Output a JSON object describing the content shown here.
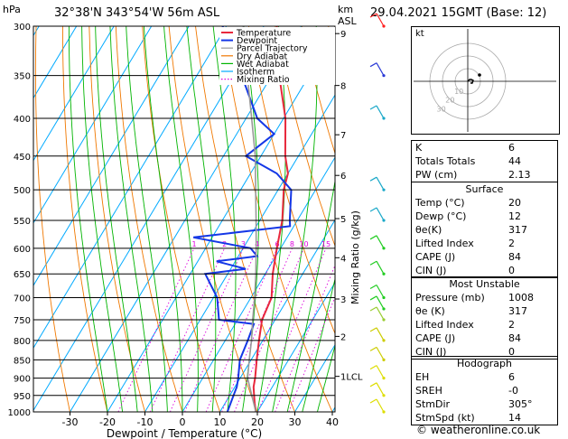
{
  "header": {
    "location": "32°38'N  343°54'W  56m  ASL",
    "datetime": "29.04.2021  15GMT  (Base: 12)",
    "pressure_unit": "hPa",
    "height_unit": "km",
    "height_ref": "ASL"
  },
  "footer": "© weatheronline.co.uk",
  "chart_data": {
    "type": "line",
    "xlabel": "Dewpoint / Temperature (°C)",
    "ylabel_right": "Mixing Ratio (g/kg)",
    "xlim": [
      -35,
      40
    ],
    "pressure_levels": [
      300,
      350,
      400,
      450,
      500,
      550,
      600,
      650,
      700,
      750,
      800,
      850,
      900,
      950,
      1000
    ],
    "x_ticks": [
      -30,
      -20,
      -10,
      0,
      10,
      20,
      30,
      40
    ],
    "km_ticks": [
      {
        "km": "1LCL",
        "p": 895
      },
      {
        "km": "2",
        "p": 790
      },
      {
        "km": "3",
        "p": 703
      },
      {
        "km": "4",
        "p": 618
      },
      {
        "km": "5",
        "p": 547
      },
      {
        "km": "6",
        "p": 478
      },
      {
        "km": "7",
        "p": 421
      },
      {
        "km": "8",
        "p": 361
      },
      {
        "km": "9",
        "p": 307
      }
    ],
    "mixing_ratio_labels": [
      "1",
      "2",
      "3",
      "4",
      "6",
      "8",
      "10",
      "15",
      "20",
      "25"
    ],
    "legend": [
      "Temperature",
      "Dewpoint",
      "Parcel Trajectory",
      "Dry Adiabat",
      "Wet Adiabat",
      "Isotherm",
      "Mixing Ratio"
    ],
    "colors": {
      "temperature": "#e8283c",
      "dewpoint": "#1437e6",
      "parcel": "#999999",
      "dry_adiabat": "#f07800",
      "wet_adiabat": "#00b400",
      "isotherm": "#00aaff",
      "mixing_ratio": "#dd00dd"
    },
    "series": [
      {
        "name": "Temperature",
        "points": [
          [
            1000,
            19.6
          ],
          [
            975,
            18.0
          ],
          [
            950,
            16.5
          ],
          [
            925,
            15.0
          ],
          [
            900,
            14.0
          ],
          [
            850,
            11.5
          ],
          [
            800,
            9.0
          ],
          [
            750,
            6.5
          ],
          [
            700,
            5.5
          ],
          [
            650,
            2.0
          ],
          [
            600,
            -1.0
          ],
          [
            550,
            -4.0
          ],
          [
            500,
            -8.5
          ],
          [
            475,
            -10.0
          ],
          [
            450,
            -13.5
          ],
          [
            400,
            -19.5
          ],
          [
            350,
            -28.0
          ],
          [
            300,
            -36.5
          ]
        ]
      },
      {
        "name": "Dewpoint",
        "points": [
          [
            1000,
            12.0
          ],
          [
            950,
            11.0
          ],
          [
            925,
            10.5
          ],
          [
            900,
            9.5
          ],
          [
            850,
            7.0
          ],
          [
            800,
            6.0
          ],
          [
            760,
            5.0
          ],
          [
            750,
            -5.0
          ],
          [
            700,
            -9.0
          ],
          [
            650,
            -16.0
          ],
          [
            640,
            -6.0
          ],
          [
            625,
            -15.0
          ],
          [
            615,
            -5.0
          ],
          [
            600,
            -8.0
          ],
          [
            580,
            -25.0
          ],
          [
            560,
            -1.0
          ],
          [
            550,
            -2.0
          ],
          [
            500,
            -6.5
          ],
          [
            475,
            -13.0
          ],
          [
            450,
            -24.0
          ],
          [
            420,
            -20.0
          ],
          [
            400,
            -27.0
          ],
          [
            350,
            -38.0
          ],
          [
            300,
            -51.0
          ]
        ]
      },
      {
        "name": "Parcel Trajectory",
        "points": [
          [
            1000,
            19.6
          ],
          [
            900,
            12.0
          ],
          [
            850,
            9.5
          ],
          [
            800,
            7.0
          ],
          [
            750,
            4.0
          ],
          [
            700,
            1.0
          ],
          [
            650,
            -2.5
          ],
          [
            600,
            -6.5
          ],
          [
            550,
            -11.0
          ],
          [
            500,
            -16.0
          ],
          [
            450,
            -21.5
          ],
          [
            400,
            -28.5
          ],
          [
            350,
            -36.5
          ],
          [
            300,
            -45.5
          ]
        ]
      }
    ]
  },
  "hodograph": {
    "unit": "kt",
    "ring_labels": [
      "10",
      "20",
      "30"
    ]
  },
  "indices": {
    "top": [
      {
        "label": "K",
        "value": "6"
      },
      {
        "label": "Totals Totals",
        "value": "44"
      },
      {
        "label": "PW (cm)",
        "value": "2.13"
      }
    ],
    "surface": {
      "title": "Surface",
      "rows": [
        {
          "label": "Temp (°C)",
          "value": "20"
        },
        {
          "label": "Dewp (°C)",
          "value": "12"
        },
        {
          "label": "θe(K)",
          "value": "317"
        },
        {
          "label": "Lifted Index",
          "value": "2"
        },
        {
          "label": "CAPE (J)",
          "value": "84"
        },
        {
          "label": "CIN (J)",
          "value": "0"
        }
      ]
    },
    "most_unstable": {
      "title": "Most Unstable",
      "rows": [
        {
          "label": "Pressure (mb)",
          "value": "1008"
        },
        {
          "label": "θe (K)",
          "value": "317"
        },
        {
          "label": "Lifted Index",
          "value": "2"
        },
        {
          "label": "CAPE (J)",
          "value": "84"
        },
        {
          "label": "CIN (J)",
          "value": "0"
        }
      ]
    },
    "hodograph": {
      "title": "Hodograph",
      "rows": [
        {
          "label": "EH",
          "value": "6"
        },
        {
          "label": "SREH",
          "value": "-0"
        },
        {
          "label": "StmDir",
          "value": "305°"
        },
        {
          "label": "StmSpd (kt)",
          "value": "14"
        }
      ]
    }
  }
}
